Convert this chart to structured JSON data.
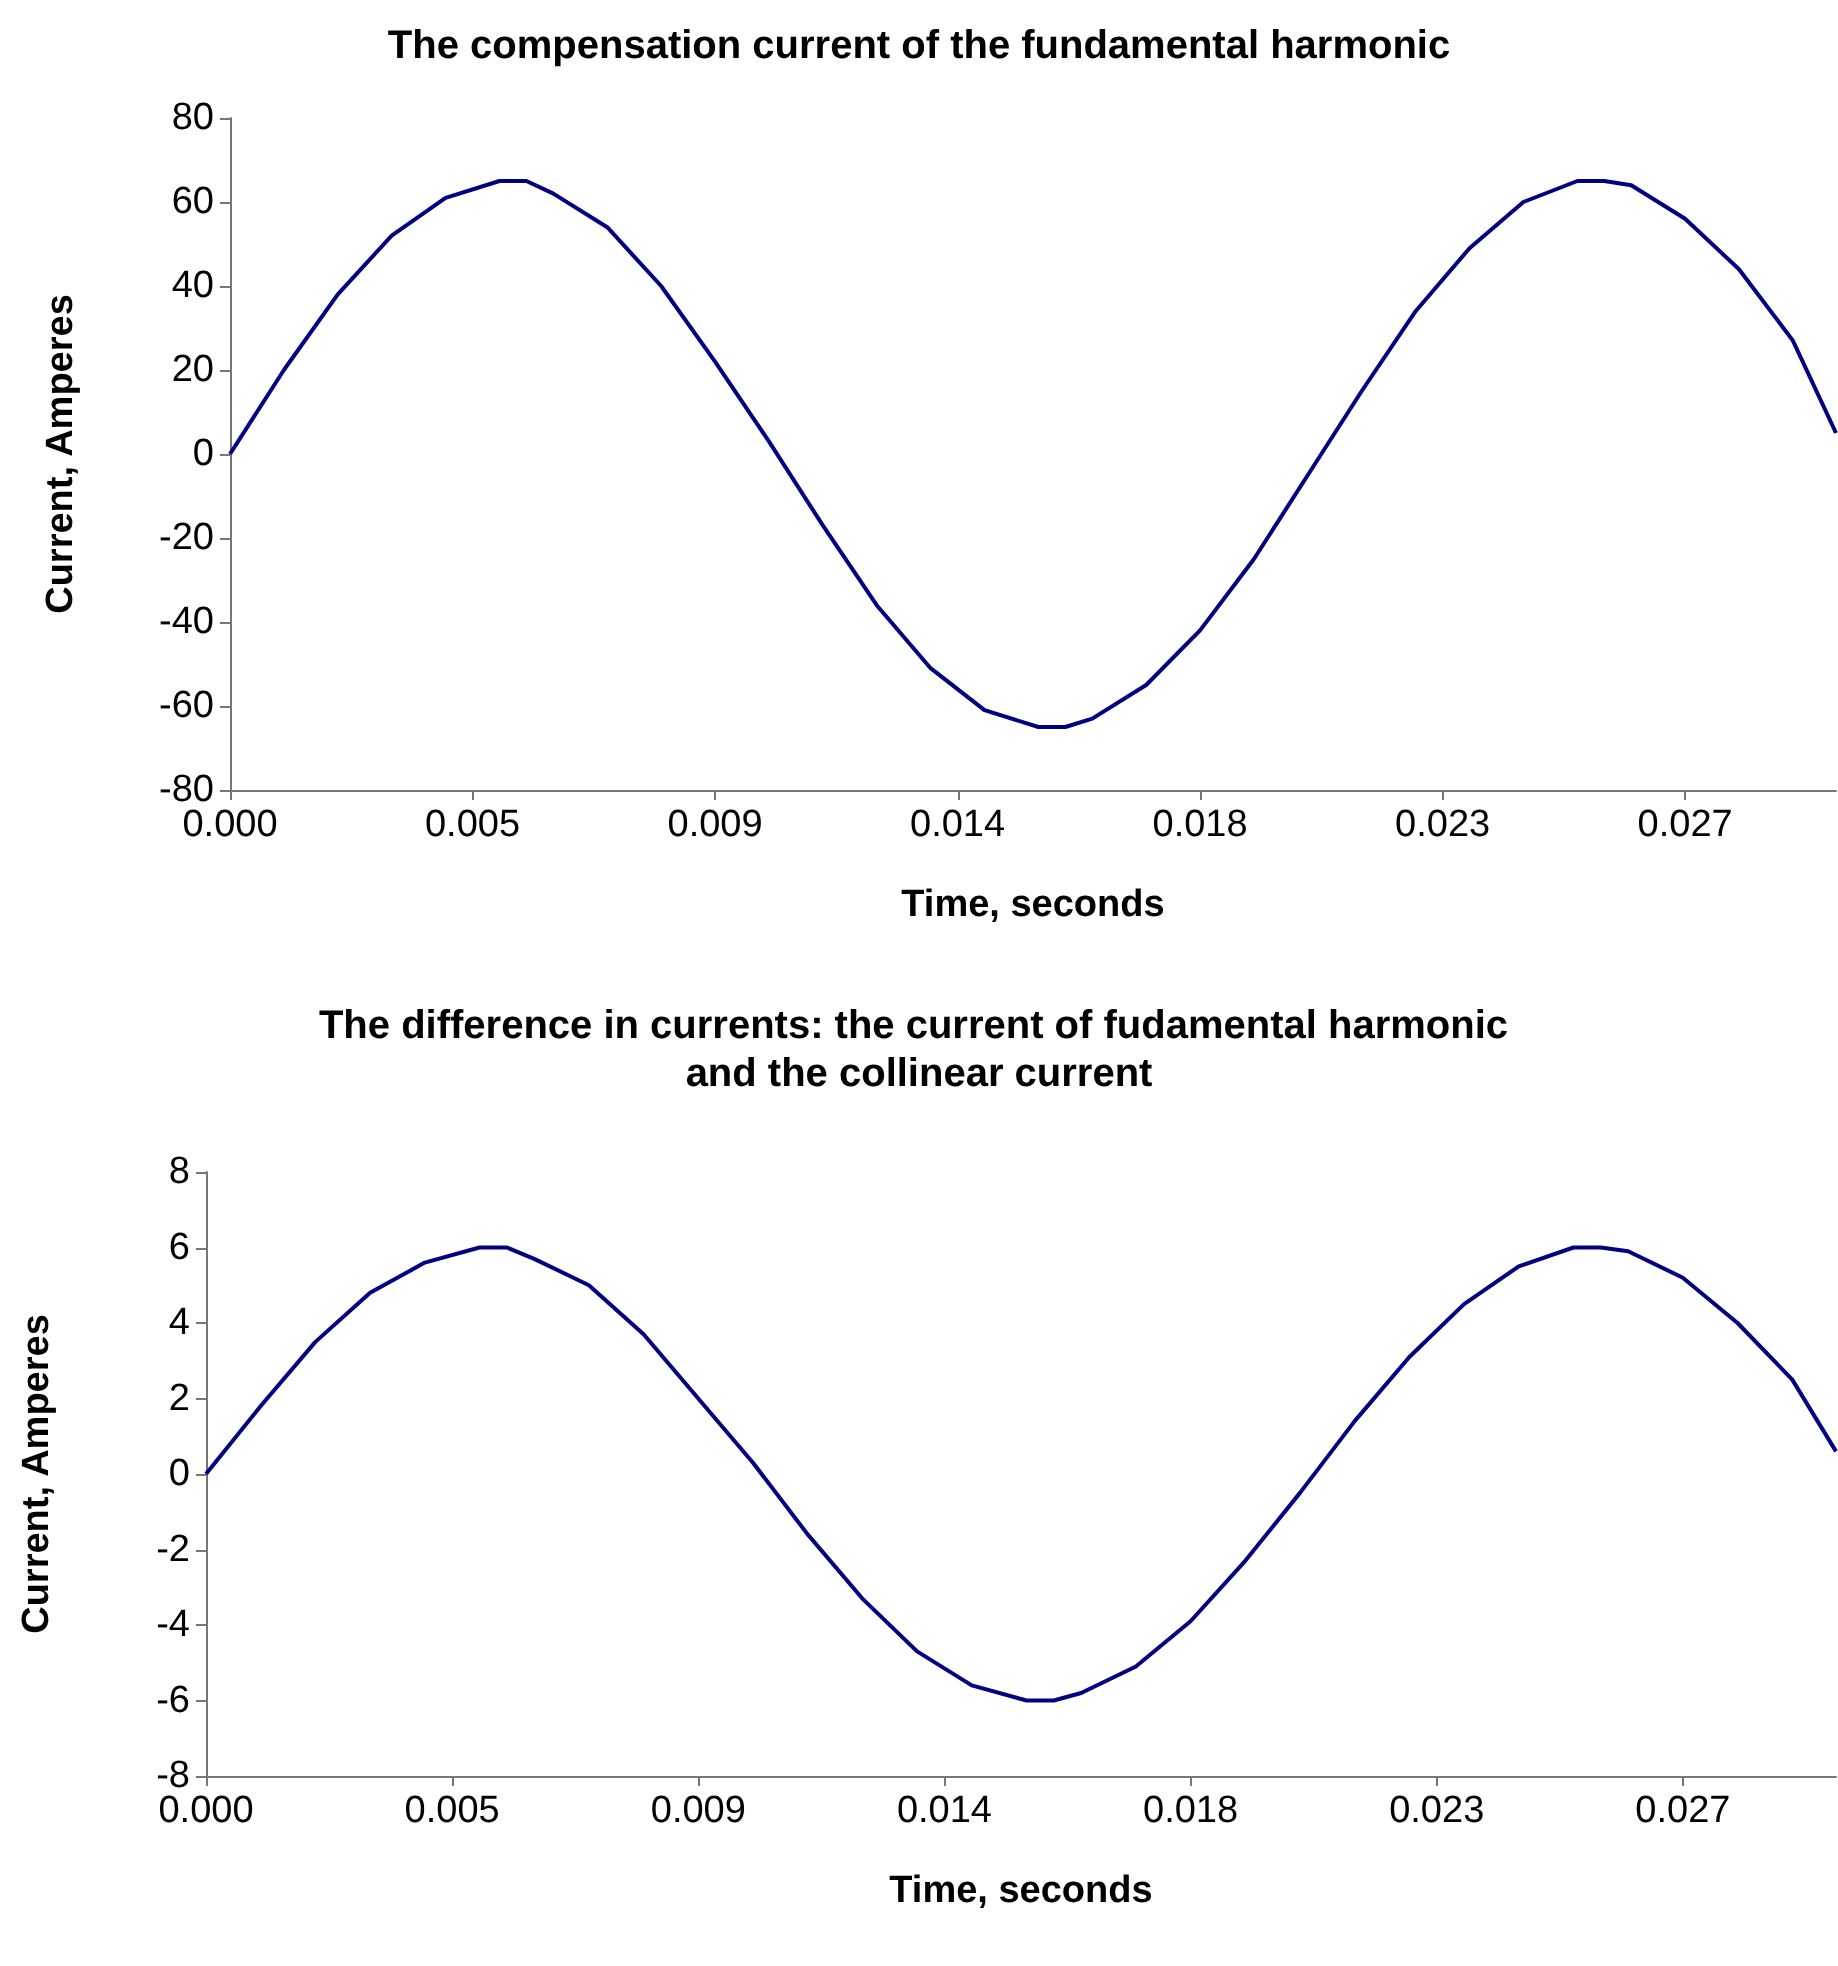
{
  "chart_data": [
    {
      "type": "line",
      "title": "The compensation current of the fundamental harmonic",
      "xlabel": "Time, seconds",
      "ylabel": "Current, Amperes",
      "x": [
        0,
        0.001,
        0.002,
        0.003,
        0.004,
        0.005,
        0.0055,
        0.006,
        0.007,
        0.008,
        0.009,
        0.01,
        0.011,
        0.012,
        0.013,
        0.014,
        0.015,
        0.0155,
        0.016,
        0.017,
        0.018,
        0.019,
        0.02,
        0.021,
        0.022,
        0.023,
        0.024,
        0.025,
        0.0255,
        0.026,
        0.027,
        0.028,
        0.029,
        0.0298
      ],
      "series": [
        {
          "color": "#000080",
          "values": [
            0,
            20,
            38,
            52,
            61,
            65,
            65,
            62,
            54,
            40,
            22,
            3,
            -17,
            -36,
            -51,
            -61,
            -65,
            -65,
            -63,
            -55,
            -42,
            -25,
            -5,
            15,
            34,
            49,
            60,
            65,
            65,
            64,
            56,
            44,
            27,
            5
          ]
        }
      ],
      "xlim": [
        0,
        0.0298
      ],
      "xticks": [
        {
          "value": 0,
          "label": "0.000"
        },
        {
          "value": 0.0045,
          "label": "0.005"
        },
        {
          "value": 0.009,
          "label": "0.009"
        },
        {
          "value": 0.0135,
          "label": "0.014"
        },
        {
          "value": 0.018,
          "label": "0.018"
        },
        {
          "value": 0.0225,
          "label": "0.023"
        },
        {
          "value": 0.027,
          "label": "0.027"
        }
      ],
      "ylim": [
        -80,
        80
      ],
      "yticks": [
        -80,
        -60,
        -40,
        -20,
        0,
        20,
        40,
        60,
        80
      ],
      "marker": "none",
      "line_style": "solid"
    },
    {
      "type": "line",
      "title": "The difference in currents: the current of fudamental harmonic and the collinear current",
      "xlabel": "Time, seconds",
      "ylabel": "Current, Amperes",
      "x": [
        0,
        0.001,
        0.002,
        0.003,
        0.004,
        0.005,
        0.0055,
        0.006,
        0.007,
        0.008,
        0.009,
        0.01,
        0.011,
        0.012,
        0.013,
        0.014,
        0.015,
        0.0155,
        0.016,
        0.017,
        0.018,
        0.019,
        0.02,
        0.021,
        0.022,
        0.023,
        0.024,
        0.025,
        0.0255,
        0.026,
        0.027,
        0.028,
        0.029,
        0.0298
      ],
      "series": [
        {
          "color": "#000080",
          "values": [
            0,
            1.8,
            3.5,
            4.8,
            5.6,
            6,
            6,
            5.7,
            5,
            3.7,
            2,
            0.3,
            -1.6,
            -3.3,
            -4.7,
            -5.6,
            -6,
            -6,
            -5.8,
            -5.1,
            -3.9,
            -2.3,
            -0.5,
            1.4,
            3.1,
            4.5,
            5.5,
            6,
            6,
            5.9,
            5.2,
            4,
            2.5,
            0.6
          ]
        }
      ],
      "xlim": [
        0,
        0.0298
      ],
      "xticks": [
        {
          "value": 0,
          "label": "0.000"
        },
        {
          "value": 0.0045,
          "label": "0.005"
        },
        {
          "value": 0.009,
          "label": "0.009"
        },
        {
          "value": 0.0135,
          "label": "0.014"
        },
        {
          "value": 0.018,
          "label": "0.018"
        },
        {
          "value": 0.0225,
          "label": "0.023"
        },
        {
          "value": 0.027,
          "label": "0.027"
        }
      ],
      "ylim": [
        -8,
        8
      ],
      "yticks": [
        -8,
        -6,
        -4,
        -2,
        0,
        2,
        4,
        6,
        8
      ],
      "marker": "none",
      "line_style": "solid"
    }
  ]
}
